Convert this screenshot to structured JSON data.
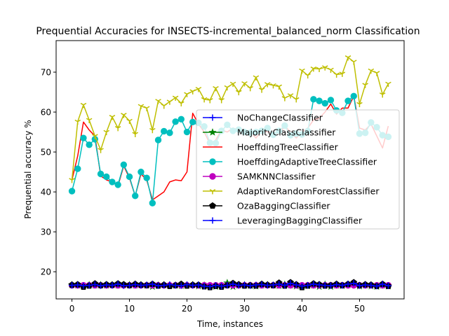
{
  "chart_data": {
    "type": "line",
    "title": "Prequential Accuracies for INSECTS-incremental_balanced_norm Classification",
    "xlabel": "Time, instances",
    "ylabel": "Prequential accuracy %",
    "xlim": [
      -2.75,
      57.75
    ],
    "ylim": [
      13.2,
      77.9
    ],
    "xticks": [
      0,
      10,
      20,
      30,
      40,
      50
    ],
    "yticks": [
      20,
      30,
      40,
      50,
      60,
      70
    ],
    "grid": false,
    "legend_position": "center-right",
    "x": [
      0,
      1,
      2,
      3,
      4,
      5,
      6,
      7,
      8,
      9,
      10,
      11,
      12,
      13,
      14,
      15,
      16,
      17,
      18,
      19,
      20,
      21,
      22,
      23,
      24,
      25,
      26,
      27,
      28,
      29,
      30,
      31,
      32,
      33,
      34,
      35,
      36,
      37,
      38,
      39,
      40,
      41,
      42,
      43,
      44,
      45,
      46,
      47,
      48,
      49,
      50,
      51,
      52,
      53,
      54,
      55
    ],
    "series": [
      {
        "name": "NoChangeClassifier",
        "color": "#0000ff",
        "marker": "+",
        "values": [
          16.6,
          16.6,
          16.6,
          16.6,
          16.6,
          16.6,
          16.6,
          16.6,
          16.6,
          16.6,
          16.6,
          16.6,
          16.6,
          16.6,
          16.6,
          16.6,
          16.6,
          16.6,
          16.6,
          16.6,
          16.6,
          16.6,
          16.6,
          16.6,
          16.6,
          16.6,
          16.6,
          16.6,
          16.6,
          16.6,
          16.6,
          16.6,
          16.6,
          16.6,
          16.6,
          16.6,
          16.6,
          16.6,
          16.6,
          16.6,
          16.6,
          16.6,
          16.6,
          16.6,
          16.6,
          16.6,
          16.6,
          16.6,
          16.6,
          16.6,
          16.6,
          16.6,
          16.6,
          16.6,
          16.6,
          16.6
        ]
      },
      {
        "name": "MajorityClassClassifier",
        "color": "#008000",
        "marker": "*",
        "values": [
          16.7,
          16.6,
          16.4,
          16.7,
          16.6,
          16.7,
          16.6,
          16.7,
          16.6,
          16.7,
          16.7,
          16.6,
          16.7,
          16.6,
          16.3,
          16.6,
          16.7,
          16.6,
          16.6,
          16.5,
          16.6,
          16.7,
          16.4,
          16.6,
          16.4,
          16.3,
          16.5,
          17.2,
          16.3,
          16.6,
          16.7,
          16.5,
          16.4,
          16.6,
          16.7,
          16.6,
          16.5,
          16.8,
          16.6,
          16.4,
          16.2,
          16.5,
          16.6,
          16.3,
          16.8,
          16.3,
          16.6,
          16.5,
          16.7,
          16.9,
          16.4,
          16.6,
          16.4,
          16.3,
          16.6,
          16.4
        ]
      },
      {
        "name": "HoeffdingTreeClassifier",
        "color": "#ff0000",
        "marker": "none",
        "values": [
          43.0,
          49.0,
          57.5,
          55.5,
          54.0,
          44.0,
          43.0,
          42.5,
          41.5,
          46.5,
          43.5,
          39.0,
          44.5,
          43.0,
          38.0,
          39.0,
          40.0,
          42.5,
          43.0,
          42.8,
          45.0,
          59.7,
          57.0,
          55.0,
          52.0,
          53.0,
          55.5,
          55.0,
          56.0,
          55.5,
          54.5,
          55.0,
          53.5,
          55.5,
          55.0,
          55.0,
          54.5,
          56.5,
          55.0,
          53.5,
          55.0,
          56.0,
          58.0,
          58.5,
          60.0,
          62.0,
          59.5,
          61.0,
          61.0,
          64.0,
          56.0,
          55.5,
          57.0,
          54.0,
          51.0,
          56.5
        ]
      },
      {
        "name": "HoeffdingAdaptiveTreeClassifier",
        "color": "#00bfbf",
        "marker": "o",
        "values": [
          40.2,
          45.8,
          53.5,
          51.8,
          53.2,
          44.5,
          43.8,
          42.5,
          41.8,
          46.8,
          43.8,
          39.0,
          45.0,
          43.5,
          37.2,
          53.0,
          55.2,
          54.8,
          57.6,
          58.2,
          55.0,
          57.5,
          57.3,
          56.4,
          52.3,
          52.2,
          55.3,
          56.8,
          55.3,
          55.6,
          55.0,
          54.8,
          55.0,
          55.3,
          56.0,
          54.3,
          55.3,
          56.6,
          54.2,
          54.6,
          54.4,
          55.2,
          63.2,
          62.8,
          62.2,
          63.0,
          60.4,
          59.8,
          62.8,
          64.0,
          54.6,
          54.8,
          57.4,
          56.2,
          54.2,
          53.8
        ]
      },
      {
        "name": "SAMKNNClassifier",
        "color": "#bf00bf",
        "marker": "o",
        "values": [
          16.6,
          16.6,
          16.6,
          16.6,
          16.6,
          16.6,
          16.6,
          16.6,
          16.6,
          16.6,
          16.6,
          16.6,
          16.6,
          16.6,
          16.6,
          16.6,
          16.6,
          16.6,
          16.6,
          16.6,
          16.6,
          16.6,
          16.6,
          16.6,
          16.6,
          16.6,
          16.6,
          16.6,
          16.6,
          16.6,
          16.6,
          16.6,
          16.6,
          16.6,
          16.6,
          16.6,
          16.6,
          16.6,
          16.6,
          16.6,
          16.6,
          16.6,
          16.6,
          16.6,
          16.6,
          16.6,
          16.6,
          16.6,
          16.6,
          16.6,
          16.6,
          16.6,
          16.6,
          16.6,
          16.6,
          16.6
        ]
      },
      {
        "name": "AdaptiveRandomForestClassifier",
        "color": "#bfbf00",
        "marker": "1",
        "values": [
          43.0,
          57.6,
          61.8,
          58.0,
          54.0,
          50.5,
          55.0,
          58.8,
          56.0,
          59.3,
          57.8,
          54.5,
          61.5,
          61.0,
          55.5,
          62.8,
          61.6,
          62.6,
          63.6,
          62.2,
          64.5,
          65.2,
          65.8,
          63.2,
          63.0,
          66.0,
          63.0,
          66.2,
          67.1,
          65.0,
          67.2,
          66.0,
          68.7,
          65.6,
          67.0,
          66.7,
          66.4,
          63.5,
          64.2,
          63.2,
          70.4,
          69.2,
          70.9,
          70.8,
          71.2,
          70.6,
          69.4,
          69.6,
          73.7,
          72.6,
          62.0,
          66.8,
          70.4,
          69.8,
          64.4,
          67.1
        ]
      },
      {
        "name": "OzaBaggingClassifier",
        "color": "#000000",
        "marker": "p",
        "values": [
          16.7,
          16.8,
          16.2,
          16.5,
          17.0,
          16.6,
          16.8,
          16.7,
          17.0,
          16.8,
          16.6,
          16.9,
          16.7,
          16.6,
          16.9,
          16.5,
          16.7,
          16.4,
          16.6,
          16.9,
          16.5,
          16.7,
          16.7,
          16.3,
          16.1,
          16.4,
          16.2,
          16.6,
          17.1,
          16.8,
          16.5,
          16.6,
          16.5,
          16.9,
          16.7,
          16.6,
          17.2,
          16.5,
          17.3,
          16.8,
          16.1,
          16.5,
          17.0,
          16.8,
          16.5,
          16.6,
          16.9,
          16.6,
          16.9,
          17.3,
          16.6,
          16.8,
          16.7,
          16.4,
          16.9,
          16.4
        ]
      },
      {
        "name": "LeveragingBaggingClassifier",
        "color": "#0000ff",
        "marker": "+",
        "values": [
          16.6,
          16.7,
          16.5,
          16.6,
          16.8,
          16.5,
          16.7,
          16.6,
          16.9,
          16.5,
          16.6,
          16.8,
          16.6,
          16.7,
          16.9,
          16.5,
          16.6,
          16.8,
          16.6,
          16.5,
          16.8,
          16.6,
          16.7,
          16.4,
          16.3,
          16.6,
          16.4,
          16.6,
          16.9,
          16.6,
          16.7,
          16.5,
          16.7,
          16.8,
          16.6,
          16.7,
          16.9,
          16.6,
          17.1,
          16.7,
          16.4,
          16.6,
          16.9,
          16.7,
          16.6,
          16.5,
          16.8,
          16.6,
          16.9,
          17.1,
          16.5,
          16.7,
          16.6,
          16.4,
          16.9,
          16.5
        ]
      }
    ]
  }
}
